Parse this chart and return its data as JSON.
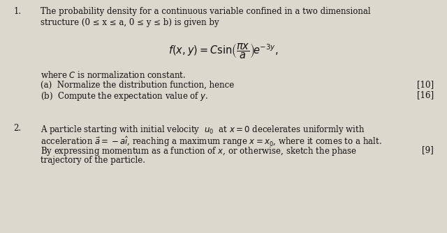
{
  "bg_color": "#ddd8ce",
  "text_color": "#111111",
  "figsize": [
    6.4,
    3.35
  ],
  "dpi": 100,
  "q1_number": "1.",
  "q1_line1": "The probability density for a continuous variable confined in a two dimensional",
  "q1_line2": "structure (0 ≤ x ≤ a, 0 ≤ y ≤ b) is given by",
  "q1_formula": "$f(x, y) = C \\sin\\!\\left(\\dfrac{\\pi x}{a}\\right)\\!e^{-3y},$",
  "q1_where": "where $C$ is normalization constant.",
  "q1_a": "(a)  Normalize the distribution function, hence",
  "q1_b": "(b)  Compute the expectation value of $y$.",
  "q1_mark_a": "[10]",
  "q1_mark_b": "[16]",
  "q2_number": "2.",
  "q2_line1": "A particle starting with initial velocity  $u_0$  at $x = 0$ decelerates uniformly with",
  "q2_line2": "acceleration $\\vec{a} = -a\\hat{\\imath}$, reaching a maximum range $x = x_0$, where it comes to a halt.",
  "q2_line3": "By expressing momentum as a function of $x$, or otherwise, sketch the phase",
  "q2_line4": "trajectory of the particle.",
  "q2_mark": "[9]",
  "font_size_main": 8.5,
  "font_size_formula": 10.5
}
